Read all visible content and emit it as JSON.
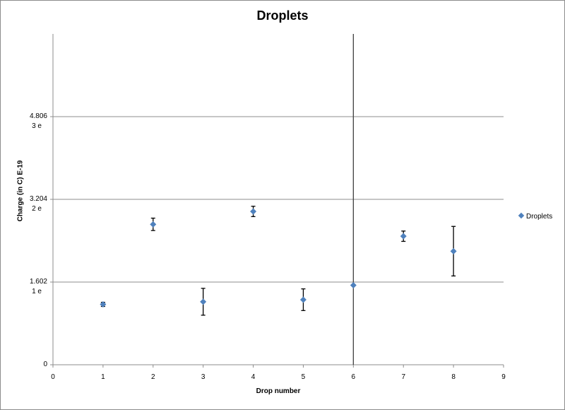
{
  "chart_data": {
    "type": "scatter",
    "title": "Droplets",
    "xlabel": "Drop number",
    "ylabel": "Charge (in C) E-19",
    "xlim": [
      0,
      9
    ],
    "ylim": [
      0,
      6.408
    ],
    "x_ticks": [
      "0",
      "1",
      "2",
      "3",
      "4",
      "5",
      "6",
      "7",
      "8",
      "9"
    ],
    "y_ticks": [
      {
        "value": 0,
        "label": "0",
        "sublabel": ""
      },
      {
        "value": 1.602,
        "label": "1.602",
        "sublabel": "1 e"
      },
      {
        "value": 3.204,
        "label": "3.204",
        "sublabel": "2 e"
      },
      {
        "value": 4.806,
        "label": "4.806",
        "sublabel": "3 e"
      }
    ],
    "grid": {
      "horizontal": true,
      "vertical": false
    },
    "vertical_line_at_x": 6,
    "legend": {
      "position": "right",
      "entries": [
        "Droplets"
      ]
    },
    "series": [
      {
        "name": "Droplets",
        "color": "#4f81bd",
        "marker": "diamond",
        "x": [
          1,
          2,
          3,
          4,
          5,
          6,
          7,
          8
        ],
        "y": [
          1.17,
          2.72,
          1.22,
          2.97,
          1.26,
          1.54,
          2.49,
          2.2
        ],
        "error": [
          0.04,
          0.12,
          0.26,
          0.1,
          0.21,
          0.0,
          0.1,
          0.48
        ]
      }
    ]
  },
  "colors": {
    "series": "#4f81bd",
    "gridline": "#8c8c8c",
    "axis": "#8c8c8c",
    "error_bar": "#000000",
    "vertical_line": "#404040"
  }
}
